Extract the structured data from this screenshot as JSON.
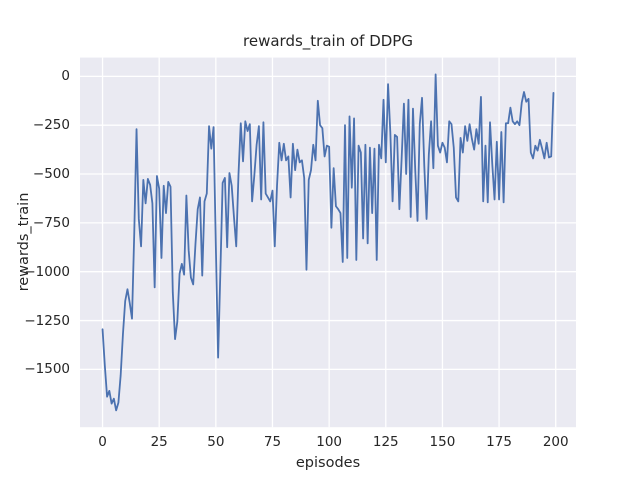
{
  "chart_data": {
    "type": "line",
    "title": "rewards_train of DDPG",
    "xlabel": "episodes",
    "ylabel": "rewards_train",
    "xlim": [
      -9.95,
      208.95
    ],
    "ylim": [
      -1796,
      96
    ],
    "grid": true,
    "legend": "none",
    "colors": {
      "line": "#4c72b0",
      "axes_background": "#eaeaf2",
      "gridline": "#ffffff",
      "text": "#262626",
      "figure_background": "#ffffff"
    },
    "x_ticks": [
      {
        "value": 0,
        "label": "0"
      },
      {
        "value": 25,
        "label": "25"
      },
      {
        "value": 50,
        "label": "50"
      },
      {
        "value": 75,
        "label": "75"
      },
      {
        "value": 100,
        "label": "100"
      },
      {
        "value": 125,
        "label": "125"
      },
      {
        "value": 150,
        "label": "150"
      },
      {
        "value": 175,
        "label": "175"
      },
      {
        "value": 200,
        "label": "200"
      }
    ],
    "y_ticks": [
      {
        "value": 0,
        "label": "0"
      },
      {
        "value": -250,
        "label": "−250"
      },
      {
        "value": -500,
        "label": "−500"
      },
      {
        "value": -750,
        "label": "−750"
      },
      {
        "value": -1000,
        "label": "−1000"
      },
      {
        "value": -1250,
        "label": "−1250"
      },
      {
        "value": -1500,
        "label": "−1500"
      }
    ],
    "series": [
      {
        "name": "rewards_train",
        "x_start": 0,
        "x_step": 1,
        "values": [
          -1295,
          -1480,
          -1640,
          -1610,
          -1675,
          -1650,
          -1710,
          -1670,
          -1530,
          -1320,
          -1150,
          -1090,
          -1160,
          -1240,
          -800,
          -270,
          -730,
          -870,
          -530,
          -650,
          -525,
          -555,
          -650,
          -1080,
          -510,
          -575,
          -930,
          -560,
          -700,
          -540,
          -565,
          -1105,
          -1345,
          -1255,
          -1010,
          -960,
          -1015,
          -610,
          -890,
          -1030,
          -1065,
          -860,
          -680,
          -620,
          -1020,
          -640,
          -600,
          -255,
          -370,
          -260,
          -870,
          -1440,
          -1000,
          -545,
          -520,
          -875,
          -495,
          -560,
          -720,
          -870,
          -500,
          -240,
          -435,
          -230,
          -280,
          -245,
          -640,
          -505,
          -350,
          -255,
          -630,
          -235,
          -600,
          -620,
          -640,
          -585,
          -870,
          -560,
          -340,
          -430,
          -345,
          -430,
          -410,
          -620,
          -345,
          -480,
          -375,
          -440,
          -430,
          -520,
          -990,
          -530,
          -480,
          -350,
          -430,
          -125,
          -250,
          -265,
          -410,
          -355,
          -360,
          -775,
          -470,
          -665,
          -680,
          -700,
          -950,
          -250,
          -930,
          -205,
          -570,
          -215,
          -940,
          -355,
          -390,
          -830,
          -350,
          -855,
          -365,
          -700,
          -370,
          -940,
          -350,
          -420,
          -120,
          -440,
          -40,
          -285,
          -640,
          -300,
          -310,
          -680,
          -420,
          -140,
          -500,
          -120,
          -720,
          -165,
          -480,
          -740,
          -245,
          -110,
          -460,
          -730,
          -400,
          -230,
          -470,
          10,
          -355,
          -390,
          -340,
          -365,
          -440,
          -230,
          -245,
          -365,
          -620,
          -640,
          -315,
          -390,
          -255,
          -330,
          -245,
          -320,
          -375,
          -270,
          -345,
          -105,
          -640,
          -355,
          -645,
          -235,
          -450,
          -630,
          -335,
          -630,
          -285,
          -645,
          -240,
          -240,
          -160,
          -230,
          -245,
          -230,
          -250,
          -135,
          -80,
          -130,
          -115,
          -390,
          -420,
          -355,
          -380,
          -325,
          -370,
          -420,
          -340,
          -415,
          -410,
          -85
        ]
      }
    ]
  }
}
